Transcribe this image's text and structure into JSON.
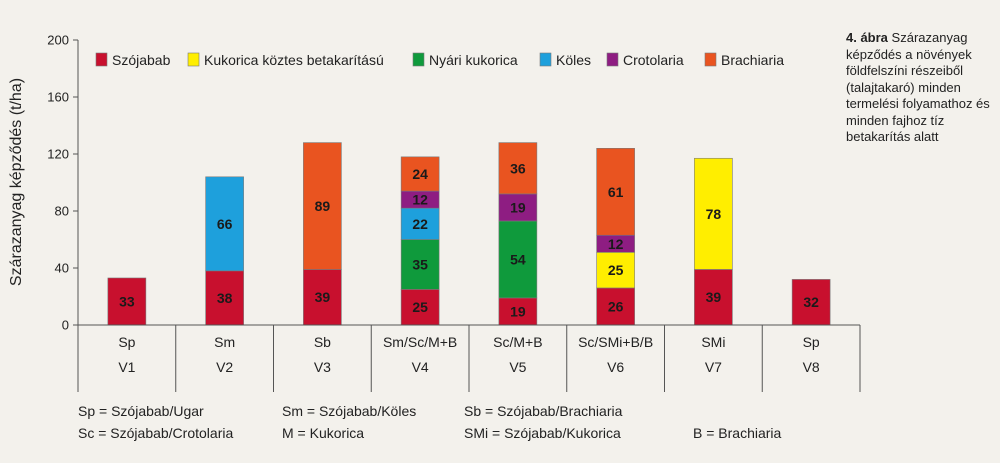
{
  "caption": {
    "number": "4. ábra",
    "text": "Szárazanyag képződés a növények földfelszíni részeiből (talajtakaró) minden termelési folyamathoz és minden fajhoz tíz betakarítás alatt"
  },
  "abbreviations": [
    [
      "Sp = Szójabab/Ugar",
      "Sc = Szójabab/Crotolaria"
    ],
    [
      "Sm = Szójabab/Köles",
      "M  = Kukorica"
    ],
    [
      "Sb = Szójabab/Brachiaria",
      "SMi = Szójabab/Kukorica"
    ],
    [
      "",
      "B = Brachiaria"
    ]
  ],
  "colors": {
    "Szójabab": "#c8102e",
    "Kukorica köztes betakarítású": "#ffee00",
    "Nyári kukorica": "#0f9a3c",
    "Köles": "#1ea0dc",
    "Crotolaria": "#8e1d82",
    "Brachiaria": "#e95420",
    "axis": "#555555",
    "background": "#f3f1ec"
  },
  "chart_data": {
    "type": "bar",
    "stacked": true,
    "title": "",
    "ylabel": "Szárazanyag képződés (t/ha)",
    "xlabel": "",
    "ylim": [
      0,
      200
    ],
    "yticks": [
      0,
      40,
      80,
      120,
      160,
      200
    ],
    "grid": false,
    "legend_position": "top",
    "categories": [
      [
        "Sp",
        "V1"
      ],
      [
        "Sm",
        "V2"
      ],
      [
        "Sb",
        "V3"
      ],
      [
        "Sm/Sc/M+B",
        "V4"
      ],
      [
        "Sc/M+B",
        "V5"
      ],
      [
        "Sc/SMi+B/B",
        "V6"
      ],
      [
        "SMi",
        "V7"
      ],
      [
        "Sp",
        "V8"
      ]
    ],
    "series": [
      {
        "name": "Szójabab",
        "values": [
          33,
          38,
          39,
          25,
          19,
          26,
          39,
          32
        ]
      },
      {
        "name": "Kukorica köztes betakarítású",
        "values": [
          0,
          0,
          0,
          0,
          0,
          25,
          78,
          0
        ]
      },
      {
        "name": "Nyári kukorica",
        "values": [
          0,
          0,
          0,
          35,
          54,
          0,
          0,
          0
        ]
      },
      {
        "name": "Köles",
        "values": [
          0,
          66,
          0,
          22,
          0,
          0,
          0,
          0
        ]
      },
      {
        "name": "Crotolaria",
        "values": [
          0,
          0,
          0,
          12,
          19,
          12,
          0,
          0
        ]
      },
      {
        "name": "Brachiaria",
        "values": [
          0,
          0,
          89,
          24,
          36,
          61,
          0,
          0
        ]
      }
    ]
  }
}
